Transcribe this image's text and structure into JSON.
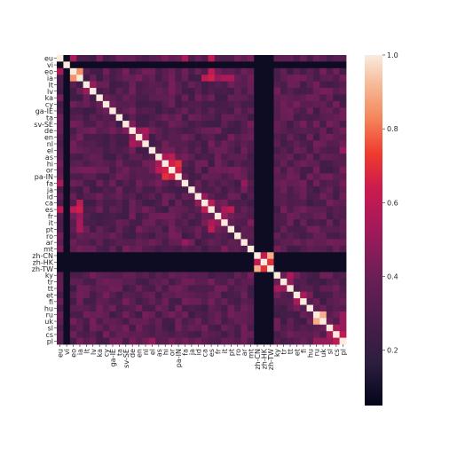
{
  "chart_data": {
    "type": "heatmap",
    "title": "",
    "xlabel": "",
    "ylabel": "",
    "labels": [
      "eu",
      "vi",
      "eo",
      "ia",
      "lt",
      "lv",
      "ka",
      "cy",
      "ga-IE",
      "ta",
      "sv-SE",
      "de",
      "en",
      "nl",
      "el",
      "as",
      "hi",
      "or",
      "pa-IN",
      "fa",
      "ja",
      "id",
      "ca",
      "es",
      "fr",
      "it",
      "pt",
      "ro",
      "ar",
      "mt",
      "zh-CN",
      "zh-HK",
      "zh-TW",
      "ky",
      "tr",
      "tt",
      "et",
      "fi",
      "hu",
      "ru",
      "uk",
      "sl",
      "cs",
      "pl"
    ],
    "value_range": [
      0.05,
      1.0
    ],
    "colorbar_ticks": [
      0.2,
      0.4,
      0.6,
      0.8,
      1.0
    ],
    "colorbar_tick_labels": [
      "0.2",
      "0.4",
      "0.6",
      "0.8",
      "1.0"
    ],
    "colormap": "rocket",
    "diagonal_value": 1.0,
    "low_correlation_languages": [
      "vi",
      "zh-CN",
      "zh-HK",
      "zh-TW"
    ],
    "low_value": 0.08,
    "typical_value": 0.35,
    "high_pairs": [
      {
        "a": "eo",
        "b": "ia",
        "value": 0.85
      },
      {
        "a": "ia",
        "b": "es",
        "value": 0.65
      },
      {
        "a": "ia",
        "b": "it",
        "value": 0.55
      },
      {
        "a": "ia",
        "b": "ca",
        "value": 0.6
      },
      {
        "a": "ia",
        "b": "pt",
        "value": 0.55
      },
      {
        "a": "ia",
        "b": "fr",
        "value": 0.5
      },
      {
        "a": "eo",
        "b": "es",
        "value": 0.6
      },
      {
        "a": "eu",
        "b": "es",
        "value": 0.6
      },
      {
        "a": "hi",
        "b": "or",
        "value": 0.65
      },
      {
        "a": "hi",
        "b": "pa-IN",
        "value": 0.7
      },
      {
        "a": "as",
        "b": "or",
        "value": 0.6
      },
      {
        "a": "or",
        "b": "pa-IN",
        "value": 0.65
      },
      {
        "a": "as",
        "b": "hi",
        "value": 0.55
      },
      {
        "a": "ca",
        "b": "es",
        "value": 0.6
      },
      {
        "a": "es",
        "b": "pt",
        "value": 0.6
      },
      {
        "a": "es",
        "b": "it",
        "value": 0.55
      },
      {
        "a": "fr",
        "b": "it",
        "value": 0.5
      },
      {
        "a": "de",
        "b": "nl",
        "value": 0.55
      },
      {
        "a": "en",
        "b": "nl",
        "value": 0.5
      },
      {
        "a": "ru",
        "b": "uk",
        "value": 0.9
      },
      {
        "a": "zh-CN",
        "b": "zh-TW",
        "value": 0.9
      },
      {
        "a": "zh-HK",
        "b": "zh-TW",
        "value": 0.7
      },
      {
        "a": "zh-CN",
        "b": "zh-HK",
        "value": 0.6
      },
      {
        "a": "sl",
        "b": "cs",
        "value": 0.55
      },
      {
        "a": "cs",
        "b": "pl",
        "value": 0.6
      },
      {
        "a": "sl",
        "b": "pl",
        "value": 0.5
      },
      {
        "a": "ru",
        "b": "pl",
        "value": 0.5
      },
      {
        "a": "uk",
        "b": "pl",
        "value": 0.5
      },
      {
        "a": "eu",
        "b": "eo",
        "value": 0.55
      },
      {
        "a": "eu",
        "b": "fa",
        "value": 0.55
      },
      {
        "a": "fa",
        "b": "ar",
        "value": 0.5
      },
      {
        "a": "tr",
        "b": "tt",
        "value": 0.5
      },
      {
        "a": "ky",
        "b": "tt",
        "value": 0.55
      },
      {
        "a": "et",
        "b": "fi",
        "value": 0.55
      },
      {
        "a": "lt",
        "b": "lv",
        "value": 0.5
      },
      {
        "a": "id",
        "b": "ca",
        "value": 0.5
      },
      {
        "a": "el",
        "b": "pl",
        "value": 0.5
      },
      {
        "a": "mt",
        "b": "it",
        "value": 0.45
      },
      {
        "a": "sv-SE",
        "b": "de",
        "value": 0.45
      },
      {
        "a": "en",
        "b": "de",
        "value": 0.5
      }
    ]
  }
}
